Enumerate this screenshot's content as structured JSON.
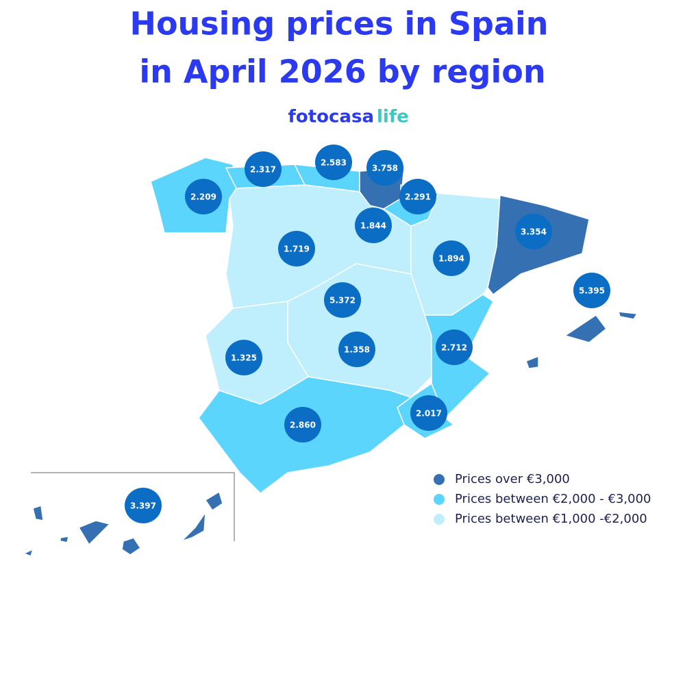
{
  "header": {
    "title_lines": [
      "Housing prices in Spain",
      "in April 2026 by region"
    ],
    "brand": [
      "fotocasa",
      "life"
    ]
  },
  "legend": [
    {
      "label": "Prices over €3,000",
      "color": "#3470b2"
    },
    {
      "label": "Prices between €2,000 - €3,000",
      "color": "#5cd5fd"
    },
    {
      "label": "Prices between €1,000 -€2,000",
      "color": "#bfeefd"
    }
  ],
  "regions": [
    {
      "label": "2.209",
      "color": "#5cd5fd"
    },
    {
      "label": "2.317",
      "color": "#5cd5fd"
    },
    {
      "label": "2.583",
      "color": "#5cd5fd"
    },
    {
      "label": "3.758",
      "color": "#3470b2"
    },
    {
      "label": "2.291",
      "color": "#5cd5fd"
    },
    {
      "label": "1.844",
      "color": "#bfeefd"
    },
    {
      "label": "1.719",
      "color": "#bfeefd"
    },
    {
      "label": "1.894",
      "color": "#bfeefd"
    },
    {
      "label": "3.354",
      "color": "#3470b2"
    },
    {
      "label": "5.372",
      "color": "#3470b2"
    },
    {
      "label": "5.395",
      "color": "#3470b2"
    },
    {
      "label": "1.325",
      "color": "#bfeefd"
    },
    {
      "label": "1.358",
      "color": "#bfeefd"
    },
    {
      "label": "2.712",
      "color": "#5cd5fd"
    },
    {
      "label": "2.017",
      "color": "#5cd5fd"
    },
    {
      "label": "2.860",
      "color": "#5cd5fd"
    },
    {
      "label": "3.397",
      "color": "#3470b2"
    }
  ]
}
